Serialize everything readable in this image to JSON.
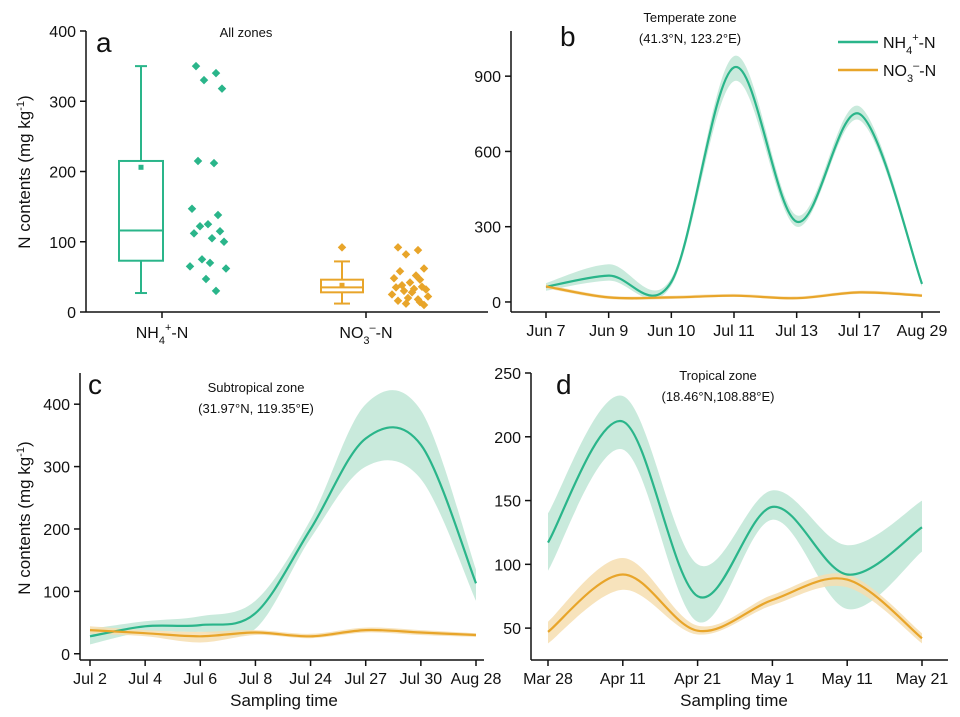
{
  "colors": {
    "nh4": "#2ab58a",
    "no3": "#e8a52a",
    "nh4_band": "#bfe6d6",
    "no3_band": "#f6deb0",
    "axis": "#111111"
  },
  "legend": {
    "nh4_label": "NH4+-N",
    "no3_label": "NO3–-N"
  },
  "chart_data": [
    {
      "panel": "a",
      "type": "box",
      "title": "All zones",
      "xlabel": "",
      "ylabel": "N contents (mg kg-1)",
      "ylim": [
        0,
        400
      ],
      "yticks": [
        0,
        100,
        200,
        300,
        400
      ],
      "categories": [
        "NH4+-N",
        "NO3–-N"
      ],
      "boxes": [
        {
          "name": "NH4+-N",
          "min": 27,
          "q1": 73,
          "median": 116,
          "q3": 215,
          "max": 350,
          "mean": 206
        },
        {
          "name": "NO3–-N",
          "min": 12,
          "q1": 28,
          "median": 35,
          "q3": 46,
          "max": 72,
          "mean": 38,
          "outliers": [
            92
          ]
        }
      ],
      "points": [
        {
          "series": "NH4+-N",
          "values": [
            350,
            340,
            330,
            318,
            215,
            212,
            147,
            138,
            125,
            122,
            115,
            112,
            105,
            100,
            75,
            70,
            65,
            62,
            47,
            30
          ]
        },
        {
          "series": "NO3–-N",
          "values": [
            92,
            88,
            82,
            62,
            58,
            52,
            48,
            46,
            42,
            38,
            36,
            35,
            33,
            32,
            30,
            28,
            25,
            22,
            20,
            18,
            16,
            14,
            12,
            10
          ]
        }
      ]
    },
    {
      "panel": "b",
      "type": "line",
      "title": "Temperate zone",
      "subtitle": "(41.3°N, 123.2°E)",
      "xlabel": "",
      "ylabel": "",
      "ylim": [
        -40,
        1080
      ],
      "yticks": [
        0,
        300,
        600,
        900
      ],
      "categories": [
        "Jun 7",
        "Jun 9",
        "Jun 10",
        "Jul 11",
        "Jul 13",
        "Jul 17",
        "Aug 29"
      ],
      "series": [
        {
          "name": "NH4+-N",
          "values": [
            60,
            105,
            80,
            935,
            320,
            750,
            72
          ],
          "lower": [
            45,
            85,
            65,
            880,
            300,
            725,
            60
          ],
          "upper": [
            75,
            150,
            95,
            980,
            345,
            780,
            85
          ]
        },
        {
          "name": "NO3–-N",
          "values": [
            62,
            18,
            18,
            25,
            15,
            38,
            25
          ],
          "lower": [
            55,
            12,
            12,
            20,
            10,
            32,
            20
          ],
          "upper": [
            70,
            25,
            25,
            32,
            22,
            45,
            32
          ]
        }
      ]
    },
    {
      "panel": "c",
      "type": "line",
      "title": "Subtropical zone",
      "subtitle": "(31.97°N, 119.35°E)",
      "xlabel": "Sampling time",
      "ylabel": "N contents (mg kg-1)",
      "ylim": [
        -10,
        450
      ],
      "yticks": [
        0,
        100,
        200,
        300,
        400
      ],
      "categories": [
        "Jul 2",
        "Jul 4",
        "Jul 6",
        "Jul 8",
        "Jul 24",
        "Jul 27",
        "Jul 30",
        "Aug 28"
      ],
      "series": [
        {
          "name": "NH4+-N",
          "values": [
            28,
            44,
            46,
            65,
            200,
            345,
            335,
            113
          ],
          "lower": [
            15,
            35,
            35,
            40,
            185,
            300,
            280,
            85
          ],
          "upper": [
            40,
            52,
            60,
            85,
            215,
            400,
            390,
            135
          ]
        },
        {
          "name": "NO3–-N",
          "values": [
            38,
            33,
            28,
            34,
            28,
            38,
            34,
            30
          ],
          "lower": [
            32,
            28,
            18,
            30,
            25,
            34,
            30,
            27
          ],
          "upper": [
            44,
            38,
            35,
            38,
            32,
            42,
            38,
            33
          ]
        }
      ]
    },
    {
      "panel": "d",
      "type": "line",
      "title": "Tropical zone",
      "subtitle": "(18.46°N,108.88°E)",
      "xlabel": "Sampling time",
      "ylabel": "",
      "ylim": [
        25,
        250
      ],
      "yticks": [
        50,
        100,
        150,
        200,
        250
      ],
      "categories": [
        "Mar 28",
        "Apr 11",
        "Apr 21",
        "May 1",
        "May 11",
        "May 21"
      ],
      "series": [
        {
          "name": "NH4+-N",
          "values": [
            117,
            212,
            75,
            145,
            92,
            129
          ],
          "lower": [
            95,
            190,
            55,
            135,
            65,
            110
          ],
          "upper": [
            140,
            232,
            100,
            158,
            115,
            150
          ]
        },
        {
          "name": "NO3–-N",
          "values": [
            47,
            92,
            48,
            72,
            88,
            42
          ],
          "lower": [
            38,
            80,
            45,
            68,
            82,
            38
          ],
          "upper": [
            55,
            105,
            52,
            76,
            92,
            46
          ]
        }
      ]
    }
  ]
}
